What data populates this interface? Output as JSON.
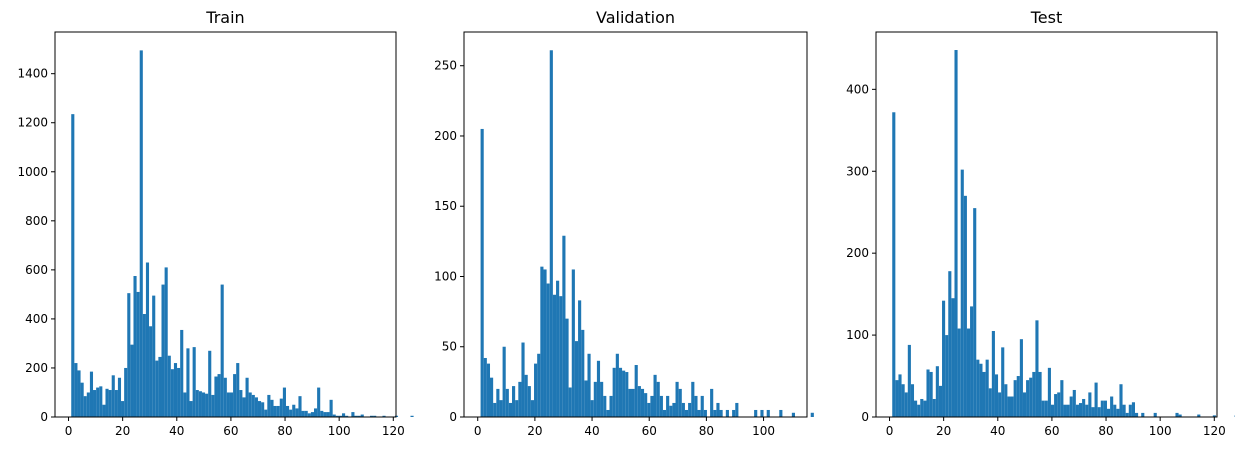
{
  "chart_data": [
    {
      "type": "bar",
      "title": "Train",
      "xlabel": "",
      "ylabel": "",
      "xlim": [
        -5,
        121
      ],
      "ylim": [
        0,
        1570
      ],
      "xticks": [
        0,
        20,
        40,
        60,
        80,
        100,
        120
      ],
      "yticks": [
        0,
        200,
        400,
        600,
        800,
        1000,
        1200,
        1400
      ],
      "bin_start": 1,
      "bin_width": 1.15,
      "color": "#1f77b4",
      "values": [
        1235,
        220,
        190,
        140,
        85,
        100,
        185,
        110,
        120,
        125,
        50,
        115,
        110,
        170,
        110,
        160,
        65,
        200,
        505,
        295,
        575,
        510,
        1495,
        420,
        630,
        370,
        495,
        230,
        245,
        540,
        610,
        250,
        195,
        220,
        200,
        355,
        100,
        280,
        65,
        285,
        110,
        105,
        100,
        95,
        270,
        90,
        165,
        175,
        540,
        160,
        100,
        100,
        175,
        220,
        110,
        80,
        160,
        100,
        90,
        80,
        65,
        60,
        30,
        90,
        70,
        45,
        45,
        75,
        120,
        45,
        30,
        50,
        35,
        85,
        25,
        25,
        15,
        20,
        35,
        120,
        25,
        20,
        20,
        70,
        10,
        5,
        5,
        15,
        5,
        0,
        20,
        5,
        5,
        10,
        0,
        0,
        5,
        5,
        0,
        0,
        5,
        0,
        0,
        0,
        5,
        0,
        0,
        0,
        0,
        5
      ]
    },
    {
      "type": "bar",
      "title": "Validation",
      "xlabel": "",
      "ylabel": "",
      "xlim": [
        -4.8,
        115.2
      ],
      "ylim": [
        0,
        274
      ],
      "xticks": [
        0,
        20,
        40,
        60,
        80,
        100
      ],
      "yticks": [
        0,
        50,
        100,
        150,
        200,
        250
      ],
      "bin_start": 1,
      "bin_width": 1.1,
      "color": "#1f77b4",
      "values": [
        205,
        42,
        38,
        28,
        10,
        20,
        12,
        50,
        20,
        10,
        22,
        12,
        25,
        53,
        30,
        22,
        12,
        38,
        45,
        107,
        105,
        95,
        261,
        87,
        97,
        86,
        129,
        70,
        21,
        105,
        54,
        83,
        62,
        26,
        45,
        12,
        25,
        40,
        25,
        15,
        5,
        15,
        35,
        45,
        35,
        33,
        32,
        20,
        20,
        37,
        22,
        20,
        17,
        10,
        15,
        30,
        25,
        15,
        5,
        15,
        8,
        10,
        25,
        20,
        10,
        5,
        10,
        25,
        15,
        5,
        15,
        5,
        0,
        20,
        5,
        10,
        5,
        0,
        5,
        0,
        5,
        10,
        0,
        0,
        0,
        0,
        0,
        5,
        0,
        5,
        0,
        5,
        0,
        0,
        0,
        5,
        0,
        0,
        0,
        3,
        0,
        0,
        0,
        0,
        0,
        3,
        0
      ]
    },
    {
      "type": "bar",
      "title": "Test",
      "xlabel": "",
      "ylabel": "",
      "xlim": [
        -5,
        121
      ],
      "ylim": [
        0,
        470
      ],
      "xticks": [
        0,
        20,
        40,
        60,
        80,
        100,
        120
      ],
      "yticks": [
        0,
        100,
        200,
        300,
        400
      ],
      "bin_start": 1,
      "bin_width": 1.15,
      "color": "#1f77b4",
      "values": [
        372,
        45,
        52,
        40,
        30,
        88,
        40,
        20,
        15,
        22,
        20,
        58,
        55,
        22,
        62,
        38,
        142,
        100,
        178,
        145,
        448,
        108,
        302,
        270,
        108,
        135,
        255,
        70,
        65,
        55,
        70,
        35,
        105,
        52,
        30,
        85,
        40,
        25,
        25,
        45,
        50,
        95,
        30,
        45,
        48,
        55,
        118,
        55,
        20,
        20,
        60,
        15,
        28,
        30,
        45,
        15,
        15,
        25,
        33,
        15,
        17,
        22,
        15,
        30,
        12,
        42,
        12,
        20,
        20,
        10,
        25,
        15,
        10,
        40,
        15,
        5,
        15,
        18,
        5,
        0,
        5,
        0,
        0,
        0,
        5,
        0,
        0,
        0,
        0,
        0,
        0,
        5,
        3,
        0,
        0,
        0,
        0,
        0,
        3,
        0,
        0,
        0,
        0,
        2,
        0,
        0,
        0,
        0,
        0,
        0,
        2,
        0,
        0
      ]
    }
  ]
}
